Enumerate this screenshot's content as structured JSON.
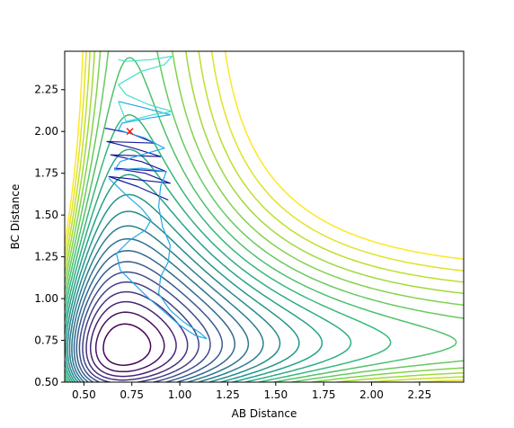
{
  "chart_data": {
    "type": "contour",
    "title": "",
    "xlabel": "AB Distance",
    "ylabel": "BC Distance",
    "xlim": [
      0.4,
      2.48
    ],
    "ylim": [
      0.5,
      2.48
    ],
    "xticks": [
      "0.50",
      "0.75",
      "1.00",
      "1.25",
      "1.50",
      "1.75",
      "2.00",
      "2.25"
    ],
    "yticks": [
      "0.50",
      "0.75",
      "1.00",
      "1.25",
      "1.50",
      "1.75",
      "2.00",
      "2.25"
    ],
    "grid": false,
    "colormap": "viridis",
    "contour_levels": 22,
    "start_marker": {
      "x": 0.74,
      "y": 2.0,
      "symbol": "x",
      "color": "#ff0000"
    },
    "trajectories": [
      {
        "color": "#1a1aa0",
        "points": [
          [
            0.61,
            2.02
          ],
          [
            0.74,
            1.99
          ],
          [
            0.87,
            1.93
          ],
          [
            0.62,
            1.94
          ],
          [
            0.76,
            1.9
          ],
          [
            0.9,
            1.85
          ],
          [
            0.64,
            1.86
          ],
          [
            0.8,
            1.82
          ],
          [
            0.93,
            1.76
          ],
          [
            0.66,
            1.78
          ],
          [
            0.82,
            1.75
          ],
          [
            0.95,
            1.69
          ],
          [
            0.63,
            1.73
          ],
          [
            0.78,
            1.67
          ],
          [
            0.94,
            1.59
          ]
        ]
      },
      {
        "color": "#22a8e8",
        "points": [
          [
            0.63,
            1.72
          ],
          [
            0.72,
            1.62
          ],
          [
            0.8,
            1.54
          ],
          [
            0.85,
            1.47
          ],
          [
            0.82,
            1.41
          ],
          [
            0.74,
            1.35
          ],
          [
            0.67,
            1.27
          ],
          [
            0.69,
            1.17
          ],
          [
            0.76,
            1.09
          ],
          [
            0.84,
            1.0
          ],
          [
            0.92,
            0.92
          ],
          [
            1.0,
            0.84
          ],
          [
            1.08,
            0.78
          ],
          [
            1.14,
            0.76
          ],
          [
            1.1,
            0.8
          ],
          [
            1.02,
            0.86
          ],
          [
            0.95,
            0.93
          ],
          [
            0.89,
            1.03
          ],
          [
            0.9,
            1.13
          ],
          [
            0.94,
            1.22
          ],
          [
            0.95,
            1.32
          ],
          [
            0.91,
            1.43
          ],
          [
            0.89,
            1.55
          ],
          [
            0.9,
            1.67
          ],
          [
            0.93,
            1.76
          ],
          [
            0.8,
            1.78
          ],
          [
            0.66,
            1.77
          ],
          [
            0.69,
            1.82
          ],
          [
            0.8,
            1.86
          ],
          [
            0.92,
            1.9
          ],
          [
            0.82,
            1.96
          ],
          [
            0.68,
            2.01
          ],
          [
            0.7,
            2.05
          ],
          [
            0.84,
            2.08
          ],
          [
            0.95,
            2.1
          ],
          [
            0.82,
            2.14
          ],
          [
            0.68,
            2.18
          ]
        ]
      },
      {
        "color": "#44e0c8",
        "points": [
          [
            0.68,
            2.18
          ],
          [
            0.72,
            2.06
          ],
          [
            0.86,
            2.1
          ],
          [
            0.96,
            2.12
          ],
          [
            0.84,
            2.16
          ],
          [
            0.72,
            2.22
          ],
          [
            0.68,
            2.28
          ],
          [
            0.8,
            2.36
          ],
          [
            0.92,
            2.4
          ],
          [
            0.96,
            2.45
          ],
          [
            0.85,
            2.43
          ],
          [
            0.72,
            2.42
          ],
          [
            0.68,
            2.43
          ]
        ]
      }
    ]
  }
}
